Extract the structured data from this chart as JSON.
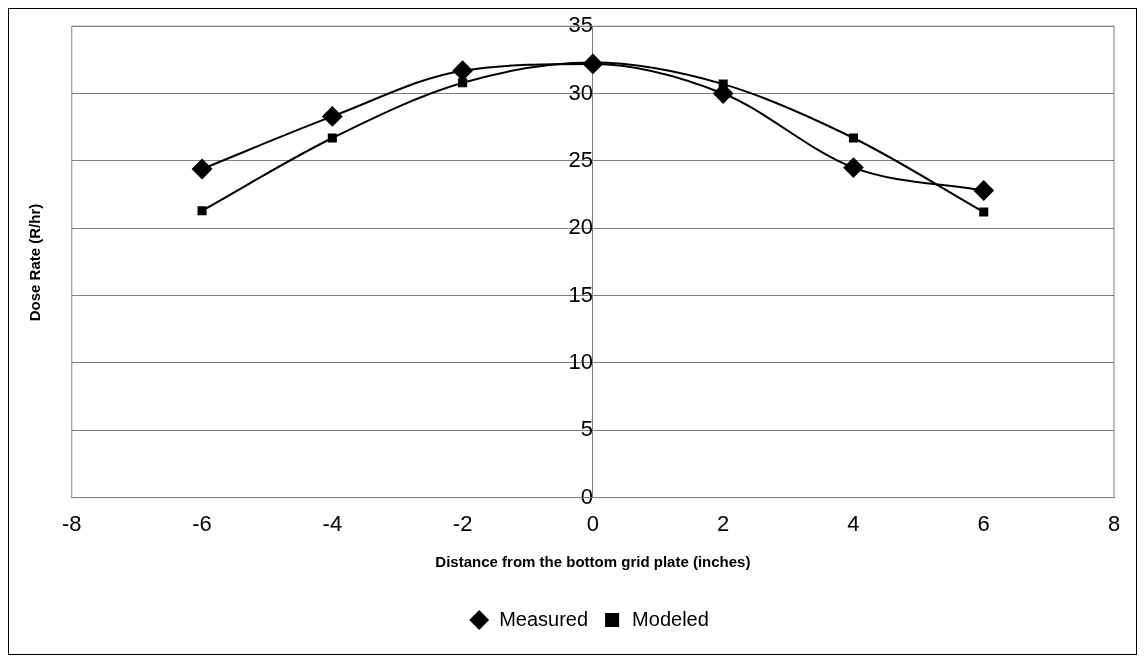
{
  "chart_data": {
    "type": "line",
    "xlabel": "Distance from the bottom grid plate (inches)",
    "ylabel": "Dose Rate (R/hr)",
    "x": [
      -6,
      -4,
      -2,
      0,
      2,
      4,
      6
    ],
    "series": [
      {
        "name": "Measured",
        "color": "#000000",
        "marker": "diamond",
        "values": [
          24.4,
          28.3,
          31.7,
          32.2,
          30.0,
          24.5,
          22.8
        ]
      },
      {
        "name": "Modeled",
        "color": "#000000",
        "marker": "square",
        "values": [
          21.3,
          26.7,
          30.8,
          32.3,
          30.7,
          26.7,
          21.2
        ]
      }
    ],
    "xlim": [
      -8,
      8
    ],
    "xticks": [
      -8,
      -6,
      -4,
      -2,
      0,
      2,
      4,
      6,
      8
    ],
    "ylim": [
      0,
      35
    ],
    "yticks": [
      0,
      5,
      10,
      15,
      20,
      25,
      30,
      35
    ],
    "grid": "y",
    "legend": "bottom",
    "line_style": "solid"
  }
}
